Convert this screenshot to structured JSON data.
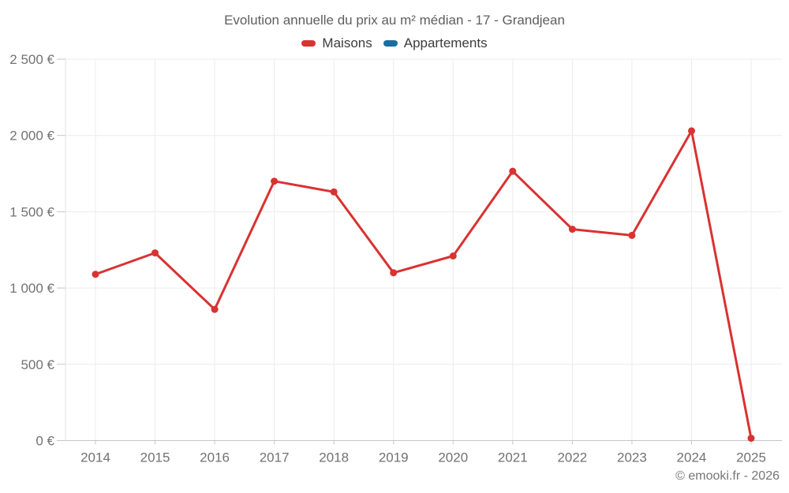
{
  "title": "Evolution annuelle du prix au m² médian - 17 - Grandjean",
  "legend": {
    "items": [
      {
        "label": "Maisons",
        "color": "#d93231"
      },
      {
        "label": "Appartements",
        "color": "#1b6ca3"
      }
    ]
  },
  "footer": {
    "copyright": "© emooki.fr - 2026"
  },
  "chart_data": {
    "type": "line",
    "title": "Evolution annuelle du prix au m² médian - 17 - Grandjean",
    "x": [
      "2014",
      "2015",
      "2016",
      "2017",
      "2018",
      "2019",
      "2020",
      "2021",
      "2022",
      "2023",
      "2024",
      "2025"
    ],
    "series": [
      {
        "name": "Maisons",
        "color": "#d93231",
        "values": [
          1090,
          1230,
          860,
          1700,
          1630,
          1100,
          1210,
          1765,
          1385,
          1345,
          2030,
          15
        ]
      },
      {
        "name": "Appartements",
        "color": "#1b6ca3",
        "values": []
      }
    ],
    "xlabel": "",
    "ylabel": "",
    "ylim": [
      0,
      2500
    ],
    "yticks": [
      0,
      500,
      1000,
      1500,
      2000,
      2500
    ],
    "ytick_labels": [
      "0 €",
      "500 €",
      "1 000 €",
      "1 500 €",
      "2 000 €",
      "2 500 €"
    ],
    "grid": true,
    "legend_position": "top",
    "currency": "€"
  }
}
